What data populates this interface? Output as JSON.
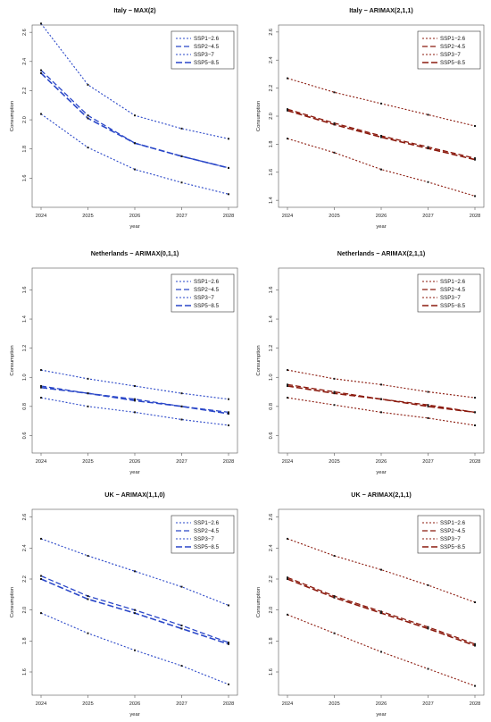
{
  "figure": {
    "background": "#ffffff"
  },
  "chart_data": [
    {
      "type": "line",
      "title": "Italy − MAX(2)",
      "xlabel": "year",
      "ylabel": "Consumption",
      "x": [
        2024,
        2025,
        2026,
        2027,
        2028
      ],
      "ylim": [
        1.4,
        2.65
      ],
      "yticks": [
        "1.6",
        "1.8",
        "2.0",
        "2.2",
        "2.4",
        "2.6"
      ],
      "color": "#2a47c8",
      "legend_position": "top-right",
      "legend": [
        "SSP1−2.6",
        "SSP2−4.5",
        "SSP3−7",
        "SSP5−8.5"
      ],
      "series": [
        {
          "name": "SSP1−2.6",
          "values": [
            2.04,
            1.81,
            1.66,
            1.57,
            1.49
          ]
        },
        {
          "name": "SSP2−4.5",
          "values": [
            2.34,
            2.03,
            1.84,
            1.75,
            1.67
          ]
        },
        {
          "name": "SSP3−7",
          "values": [
            2.66,
            2.24,
            2.03,
            1.94,
            1.87
          ]
        },
        {
          "name": "SSP5−8.5",
          "values": [
            2.32,
            2.01,
            1.84,
            1.75,
            1.67
          ]
        }
      ]
    },
    {
      "type": "line",
      "title": "Italy − ARIMAX(2,1,1)",
      "xlabel": "year",
      "ylabel": "Consumption",
      "x": [
        2024,
        2025,
        2026,
        2027,
        2028
      ],
      "ylim": [
        1.35,
        2.65
      ],
      "yticks": [
        "1.4",
        "1.6",
        "1.8",
        "2.0",
        "2.2",
        "2.4",
        "2.6"
      ],
      "color": "#8b1a0e",
      "legend_position": "top-right",
      "legend": [
        "SSP1−2.6",
        "SSP2−4.5",
        "SSP3−7",
        "SSP5−8.5"
      ],
      "series": [
        {
          "name": "SSP1−2.6",
          "values": [
            1.84,
            1.74,
            1.62,
            1.53,
            1.43
          ]
        },
        {
          "name": "SSP2−4.5",
          "values": [
            2.05,
            1.95,
            1.86,
            1.78,
            1.7
          ]
        },
        {
          "name": "SSP3−7",
          "values": [
            2.27,
            2.17,
            2.09,
            2.01,
            1.93
          ]
        },
        {
          "name": "SSP5−8.5",
          "values": [
            2.04,
            1.94,
            1.85,
            1.77,
            1.69
          ]
        }
      ]
    },
    {
      "type": "line",
      "title": "Netherlands − ARIMAX(0,1,1)",
      "xlabel": "year",
      "ylabel": "Consumption",
      "x": [
        2024,
        2025,
        2026,
        2027,
        2028
      ],
      "ylim": [
        0.48,
        1.75
      ],
      "yticks": [
        "0.6",
        "0.8",
        "1.0",
        "1.2",
        "1.4",
        "1.6"
      ],
      "color": "#2a47c8",
      "legend_position": "top-right",
      "legend": [
        "SSP1−2.6",
        "SSP2−4.5",
        "SSP3−7",
        "SSP5−8.5"
      ],
      "series": [
        {
          "name": "SSP1−2.6",
          "values": [
            0.86,
            0.8,
            0.76,
            0.71,
            0.67
          ]
        },
        {
          "name": "SSP2−4.5",
          "values": [
            0.94,
            0.89,
            0.85,
            0.8,
            0.76
          ]
        },
        {
          "name": "SSP3−7",
          "values": [
            1.05,
            0.99,
            0.94,
            0.89,
            0.85
          ]
        },
        {
          "name": "SSP5−8.5",
          "values": [
            0.93,
            0.89,
            0.84,
            0.8,
            0.75
          ]
        }
      ]
    },
    {
      "type": "line",
      "title": "Netherlands − ARIMAX(2,1,1)",
      "xlabel": "year",
      "ylabel": "Consumption",
      "x": [
        2024,
        2025,
        2026,
        2027,
        2028
      ],
      "ylim": [
        0.48,
        1.75
      ],
      "yticks": [
        "0.6",
        "0.8",
        "1.0",
        "1.2",
        "1.4",
        "1.6"
      ],
      "color": "#8b1a0e",
      "legend_position": "top-right",
      "legend": [
        "SSP1−2.6",
        "SSP2−4.5",
        "SSP3−7",
        "SSP5−8.5"
      ],
      "series": [
        {
          "name": "SSP1−2.6",
          "values": [
            0.86,
            0.81,
            0.76,
            0.72,
            0.67
          ]
        },
        {
          "name": "SSP2−4.5",
          "values": [
            0.95,
            0.9,
            0.85,
            0.81,
            0.76
          ]
        },
        {
          "name": "SSP3−7",
          "values": [
            1.05,
            0.99,
            0.95,
            0.9,
            0.86
          ]
        },
        {
          "name": "SSP5−8.5",
          "values": [
            0.94,
            0.89,
            0.85,
            0.8,
            0.76
          ]
        }
      ]
    },
    {
      "type": "line",
      "title": "UK − ARIMAX(1,1,0)",
      "xlabel": "year",
      "ylabel": "Consumption",
      "x": [
        2024,
        2025,
        2026,
        2027,
        2028
      ],
      "ylim": [
        1.45,
        2.65
      ],
      "yticks": [
        "1.6",
        "1.8",
        "2.0",
        "2.2",
        "2.4",
        "2.6"
      ],
      "color": "#2a47c8",
      "legend_position": "top-right",
      "legend": [
        "SSP1−2.6",
        "SSP2−4.5",
        "SSP3−7",
        "SSP5−8.5"
      ],
      "series": [
        {
          "name": "SSP1−2.6",
          "values": [
            1.98,
            1.85,
            1.74,
            1.64,
            1.52
          ]
        },
        {
          "name": "SSP2−4.5",
          "values": [
            2.22,
            2.09,
            2.0,
            1.9,
            1.79
          ]
        },
        {
          "name": "SSP3−7",
          "values": [
            2.46,
            2.35,
            2.25,
            2.15,
            2.03
          ]
        },
        {
          "name": "SSP5−8.5",
          "values": [
            2.2,
            2.07,
            1.98,
            1.88,
            1.78
          ]
        }
      ]
    },
    {
      "type": "line",
      "title": "UK − ARIMAX(2,1,1)",
      "xlabel": "year",
      "ylabel": "Consumption",
      "x": [
        2024,
        2025,
        2026,
        2027,
        2028
      ],
      "ylim": [
        1.45,
        2.65
      ],
      "yticks": [
        "1.6",
        "1.8",
        "2.0",
        "2.2",
        "2.4",
        "2.6"
      ],
      "color": "#8b1a0e",
      "legend_position": "top-right",
      "legend": [
        "SSP1−2.6",
        "SSP2−4.5",
        "SSP3−7",
        "SSP5−8.5"
      ],
      "series": [
        {
          "name": "SSP1−2.6",
          "values": [
            1.97,
            1.85,
            1.73,
            1.62,
            1.51
          ]
        },
        {
          "name": "SSP2−4.5",
          "values": [
            2.21,
            2.09,
            1.99,
            1.89,
            1.78
          ]
        },
        {
          "name": "SSP3−7",
          "values": [
            2.46,
            2.35,
            2.26,
            2.16,
            2.05
          ]
        },
        {
          "name": "SSP5−8.5",
          "values": [
            2.2,
            2.08,
            1.98,
            1.88,
            1.77
          ]
        }
      ]
    }
  ]
}
